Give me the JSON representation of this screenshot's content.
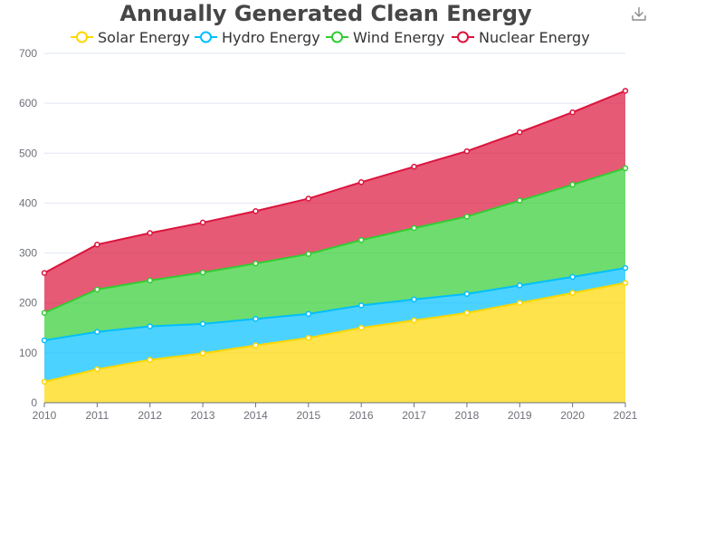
{
  "colors": {
    "solar": "#ffd700",
    "hydro": "#00bfff",
    "wind": "#32cd32",
    "nuclear": "#dc143c"
  },
  "icons": {
    "toolbox": "download-icon"
  },
  "chart_data": {
    "type": "area",
    "stacked": true,
    "title": "Annually Generated Clean Energy",
    "legend_position": "top-center",
    "grid": {
      "horizontal": true,
      "vertical": false
    },
    "categories": [
      "2010",
      "2011",
      "2012",
      "2013",
      "2014",
      "2015",
      "2016",
      "2017",
      "2018",
      "2019",
      "2020",
      "2021"
    ],
    "ylim": [
      0,
      700
    ],
    "yticks": [
      0,
      100,
      200,
      300,
      400,
      500,
      600,
      700
    ],
    "series": [
      {
        "name": "Solar Energy",
        "color_key": "solar",
        "values": [
          42,
          67,
          86,
          99,
          115,
          130,
          150,
          165,
          180,
          200,
          220,
          240
        ]
      },
      {
        "name": "Hydro Energy",
        "color_key": "hydro",
        "values": [
          83,
          75,
          67,
          59,
          53,
          48,
          45,
          42,
          38,
          35,
          32,
          30
        ]
      },
      {
        "name": "Wind Energy",
        "color_key": "wind",
        "values": [
          55,
          85,
          92,
          103,
          111,
          120,
          131,
          143,
          155,
          170,
          185,
          200
        ]
      },
      {
        "name": "Nuclear Energy",
        "color_key": "nuclear",
        "values": [
          80,
          90,
          95,
          100,
          105,
          111,
          116,
          123,
          131,
          137,
          145,
          155
        ]
      }
    ]
  }
}
